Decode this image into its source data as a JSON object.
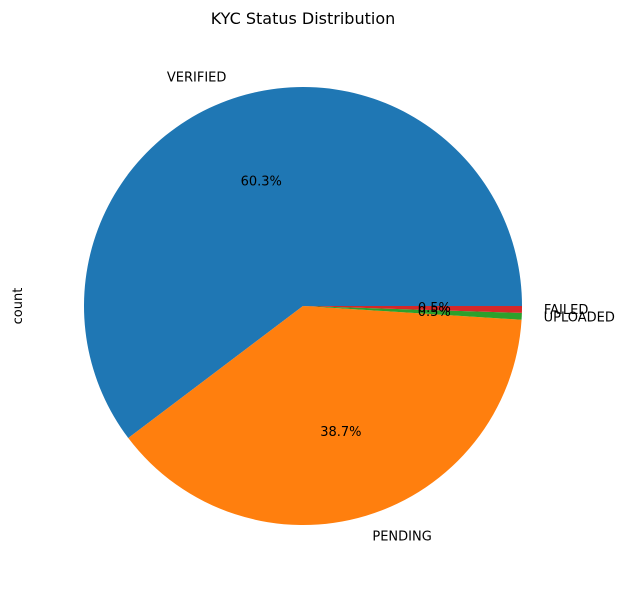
{
  "chart_data": {
    "type": "pie",
    "title": "KYC Status Distribution",
    "ylabel": "count",
    "slices": [
      {
        "label": "VERIFIED",
        "percent": 60.3,
        "pct_label": "60.3%",
        "color": "#1f77b4"
      },
      {
        "label": "PENDING",
        "percent": 38.7,
        "pct_label": "38.7%",
        "color": "#ff7f0e"
      },
      {
        "label": "UPLOADED",
        "percent": 0.5,
        "pct_label": "0.5%",
        "color": "#2ca02c"
      },
      {
        "label": "FAILED",
        "percent": 0.5,
        "pct_label": "0.5%",
        "color": "#d62728"
      }
    ]
  }
}
